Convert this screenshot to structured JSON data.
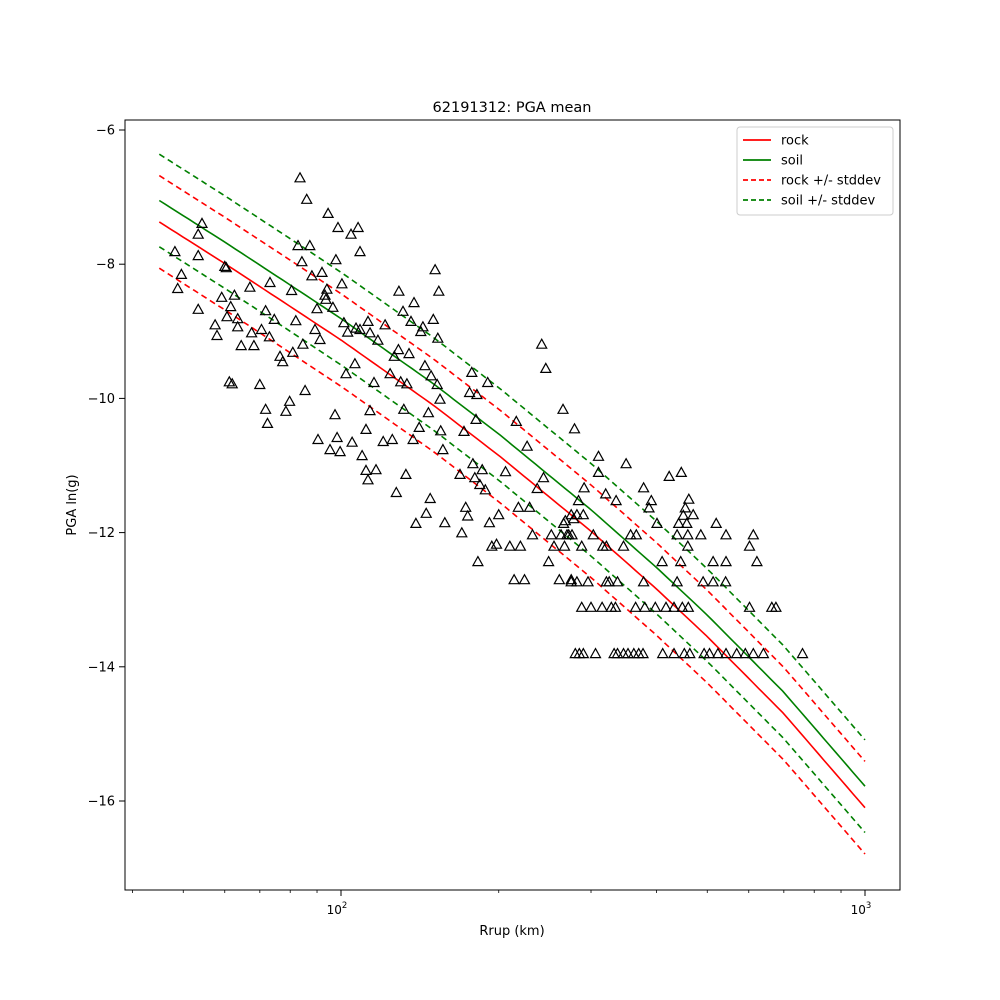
{
  "chart_data": {
    "type": "scatter",
    "title": "62191312: PGA mean",
    "xlabel": "Rrup (km)",
    "ylabel": "PGA ln(g)",
    "xscale": "log",
    "xlim": [
      38.7,
      1167
    ],
    "ylim": [
      -17.33,
      -5.85
    ],
    "grid": false,
    "legend_position": "top-right",
    "x_ticks": [
      {
        "value": 100,
        "base": "10",
        "exp": "2"
      },
      {
        "value": 1000,
        "base": "10",
        "exp": "3"
      }
    ],
    "y_ticks": [
      {
        "value": -6,
        "label": "−6"
      },
      {
        "value": -8,
        "label": "−8"
      },
      {
        "value": -10,
        "label": "−10"
      },
      {
        "value": -12,
        "label": "−12"
      },
      {
        "value": -14,
        "label": "−14"
      },
      {
        "value": -16,
        "label": "−16"
      }
    ],
    "series": [
      {
        "name": "rock",
        "color": "#ff0000",
        "style": "solid",
        "offset": 0
      },
      {
        "name": "soil",
        "color": "#008000",
        "style": "solid",
        "offset": 0.32
      },
      {
        "name": "rock +/- stddev",
        "color": "#ff0000",
        "style": "dashed",
        "offset": 0,
        "stddev": 0.69
      },
      {
        "name": "soil +/- stddev",
        "color": "#008000",
        "style": "dashed",
        "offset": 0.32,
        "stddev": 0.69
      }
    ],
    "rock_curve": {
      "x": [
        45,
        60,
        80,
        100,
        150,
        200,
        300,
        400,
        500,
        700,
        1000
      ],
      "y": [
        -7.37,
        -7.99,
        -8.63,
        -9.13,
        -10.1,
        -10.85,
        -11.98,
        -12.84,
        -13.55,
        -14.7,
        -16.1
      ]
    },
    "observations": [
      [
        48.2,
        -7.82
      ],
      [
        48.8,
        -8.37
      ],
      [
        49.6,
        -8.16
      ],
      [
        53.4,
        -8.68
      ],
      [
        53.4,
        -7.88
      ],
      [
        53.4,
        -7.56
      ],
      [
        54.3,
        -7.4
      ],
      [
        57.5,
        -8.91
      ],
      [
        58,
        -9.07
      ],
      [
        59.2,
        -8.5
      ],
      [
        60,
        -8.04
      ],
      [
        60.4,
        -8.06
      ],
      [
        60.6,
        -8.79
      ],
      [
        61.2,
        -9.76
      ],
      [
        62,
        -9.79
      ],
      [
        61.6,
        -8.64
      ],
      [
        62.6,
        -8.47
      ],
      [
        63.5,
        -8.94
      ],
      [
        64.5,
        -9.22
      ],
      [
        63.5,
        -8.82
      ],
      [
        67,
        -8.35
      ],
      [
        67.5,
        -9.03
      ],
      [
        68.2,
        -9.22
      ],
      [
        70,
        -9.8
      ],
      [
        70.5,
        -8.98
      ],
      [
        71.8,
        -8.7
      ],
      [
        71.8,
        -10.17
      ],
      [
        72.4,
        -10.38
      ],
      [
        73,
        -9.09
      ],
      [
        73.2,
        -8.28
      ],
      [
        74.6,
        -8.83
      ],
      [
        76.5,
        -9.38
      ],
      [
        77.4,
        -9.46
      ],
      [
        78.5,
        -10.2
      ],
      [
        79.8,
        -10.05
      ],
      [
        80.5,
        -8.4
      ],
      [
        80.9,
        -9.32
      ],
      [
        82,
        -8.85
      ],
      [
        82.8,
        -7.73
      ],
      [
        83.5,
        -6.72
      ],
      [
        84.2,
        -7.97
      ],
      [
        84.6,
        -9.2
      ],
      [
        85.4,
        -9.89
      ],
      [
        86,
        -7.04
      ],
      [
        87.2,
        -7.73
      ],
      [
        88,
        -8.18
      ],
      [
        89.2,
        -8.98
      ],
      [
        90,
        -8.67
      ],
      [
        90.4,
        -10.62
      ],
      [
        91.2,
        -9.13
      ],
      [
        92,
        -8.13
      ],
      [
        93.2,
        -8.47
      ],
      [
        93.6,
        -8.53
      ],
      [
        94,
        -8.38
      ],
      [
        94.5,
        -7.25
      ],
      [
        95.3,
        -10.77
      ],
      [
        96.5,
        -8.65
      ],
      [
        97.8,
        -7.94
      ],
      [
        98.7,
        -7.46
      ],
      [
        100.4,
        -8.3
      ],
      [
        101.3,
        -8.88
      ],
      [
        102.2,
        -9.64
      ],
      [
        103,
        -9.02
      ],
      [
        97.4,
        -10.25
      ],
      [
        98.3,
        -10.59
      ],
      [
        99.6,
        -10.8
      ],
      [
        104.5,
        -7.56
      ],
      [
        106.8,
        -8.96
      ],
      [
        107.8,
        -7.46
      ],
      [
        108.7,
        -7.82
      ],
      [
        105,
        -10.66
      ],
      [
        106.3,
        -9.49
      ],
      [
        108.7,
        -8.98
      ],
      [
        109.7,
        -10.86
      ],
      [
        111.6,
        -10.47
      ],
      [
        112.6,
        -8.86
      ],
      [
        113.6,
        -9.03
      ],
      [
        111.6,
        -11.08
      ],
      [
        112.6,
        -11.22
      ],
      [
        113.6,
        -10.19
      ],
      [
        115.6,
        -9.77
      ],
      [
        116.6,
        -11.07
      ],
      [
        117.6,
        -9.14
      ],
      [
        120.4,
        -10.65
      ],
      [
        121.4,
        -8.91
      ],
      [
        124.1,
        -9.64
      ],
      [
        125.3,
        -10.62
      ],
      [
        126.4,
        -9.38
      ],
      [
        127.5,
        -11.41
      ],
      [
        128.7,
        -9.28
      ],
      [
        129,
        -8.41
      ],
      [
        130,
        -9.76
      ],
      [
        131.3,
        -8.71
      ],
      [
        131.8,
        -10.17
      ],
      [
        133.6,
        -9.79
      ],
      [
        133,
        -11.14
      ],
      [
        134.8,
        -9.34
      ],
      [
        136,
        -8.86
      ],
      [
        137.3,
        -10.62
      ],
      [
        137.8,
        -8.58
      ],
      [
        139,
        -11.87
      ],
      [
        141,
        -10.44
      ],
      [
        142,
        -9.01
      ],
      [
        143.3,
        -8.94
      ],
      [
        144.6,
        -9.52
      ],
      [
        145.4,
        -11.72
      ],
      [
        146.8,
        -10.22
      ],
      [
        148,
        -11.5
      ],
      [
        148.6,
        -9.67
      ],
      [
        150,
        -8.83
      ],
      [
        151.2,
        -8.09
      ],
      [
        152.6,
        -9.8
      ],
      [
        153,
        -9.11
      ],
      [
        153.7,
        -8.41
      ],
      [
        155,
        -10.49
      ],
      [
        156.5,
        -10.77
      ],
      [
        157.8,
        -11.86
      ],
      [
        154.5,
        -10.02
      ],
      [
        168.7,
        -11.14
      ],
      [
        170,
        -12.01
      ],
      [
        171.7,
        -10.5
      ],
      [
        173,
        -11.63
      ],
      [
        174.5,
        -11.76
      ],
      [
        176,
        -9.92
      ],
      [
        177.7,
        -9.62
      ],
      [
        178.5,
        -10.98
      ],
      [
        180,
        -11.19
      ],
      [
        181,
        -10.32
      ],
      [
        181.7,
        -9.95
      ],
      [
        182.5,
        -12.44
      ],
      [
        184,
        -11.29
      ],
      [
        186,
        -11.07
      ],
      [
        188.5,
        -11.37
      ],
      [
        190.5,
        -9.77
      ],
      [
        192,
        -11.86
      ],
      [
        194,
        -12.21
      ],
      [
        198,
        -12.18
      ],
      [
        200,
        -11.74
      ],
      [
        206,
        -11.1
      ],
      [
        210,
        -12.21
      ],
      [
        214,
        -12.71
      ],
      [
        216,
        -10.35
      ],
      [
        218,
        -11.63
      ],
      [
        220,
        -12.21
      ],
      [
        224,
        -12.71
      ],
      [
        226.5,
        -10.72
      ],
      [
        229,
        -11.63
      ],
      [
        232,
        -12.04
      ],
      [
        236.8,
        -11.35
      ],
      [
        241.6,
        -9.2
      ],
      [
        243.5,
        -11.19
      ],
      [
        246,
        -9.56
      ],
      [
        249,
        -12.44
      ],
      [
        252,
        -12.04
      ],
      [
        255,
        -12.21
      ],
      [
        261,
        -12.71
      ],
      [
        265.3,
        -10.17
      ],
      [
        268,
        -11.83
      ],
      [
        272,
        -12.04
      ],
      [
        275,
        -12.71
      ],
      [
        278,
        -11.8
      ],
      [
        279,
        -10.46
      ],
      [
        310,
        -10.87
      ],
      [
        350,
        -10.98
      ],
      [
        310,
        -11.11
      ],
      [
        291,
        -11.34
      ],
      [
        320,
        -11.43
      ],
      [
        335,
        -11.53
      ],
      [
        284,
        -11.53
      ],
      [
        378,
        -11.34
      ],
      [
        423,
        -11.17
      ],
      [
        446,
        -11.11
      ],
      [
        391,
        -11.53
      ],
      [
        461,
        -11.51
      ],
      [
        387,
        -11.64
      ],
      [
        454,
        -11.64
      ],
      [
        275,
        -11.74
      ],
      [
        282,
        -11.74
      ],
      [
        290,
        -11.74
      ],
      [
        450,
        -11.75
      ],
      [
        470,
        -11.74
      ],
      [
        266,
        -11.87
      ],
      [
        401,
        -11.87
      ],
      [
        441,
        -11.87
      ],
      [
        457,
        -11.87
      ],
      [
        520,
        -11.87
      ],
      [
        263,
        -12.04
      ],
      [
        270,
        -12.04
      ],
      [
        276,
        -12.04
      ],
      [
        303,
        -12.04
      ],
      [
        357,
        -12.04
      ],
      [
        366,
        -12.04
      ],
      [
        438,
        -12.04
      ],
      [
        459,
        -12.04
      ],
      [
        486,
        -12.04
      ],
      [
        543,
        -12.04
      ],
      [
        612,
        -12.04
      ],
      [
        267,
        -12.21
      ],
      [
        288,
        -12.21
      ],
      [
        316,
        -12.21
      ],
      [
        321,
        -12.21
      ],
      [
        346,
        -12.21
      ],
      [
        459,
        -12.21
      ],
      [
        602,
        -12.21
      ],
      [
        410,
        -12.44
      ],
      [
        445,
        -12.44
      ],
      [
        513,
        -12.44
      ],
      [
        543,
        -12.44
      ],
      [
        622,
        -12.44
      ],
      [
        275,
        -12.74
      ],
      [
        282,
        -12.74
      ],
      [
        296,
        -12.74
      ],
      [
        321,
        -12.74
      ],
      [
        325,
        -12.74
      ],
      [
        337,
        -12.74
      ],
      [
        378,
        -12.74
      ],
      [
        438,
        -12.74
      ],
      [
        491,
        -12.74
      ],
      [
        513,
        -12.74
      ],
      [
        542,
        -12.74
      ],
      [
        288,
        -13.12
      ],
      [
        300,
        -13.12
      ],
      [
        315,
        -13.12
      ],
      [
        328,
        -13.12
      ],
      [
        334,
        -13.12
      ],
      [
        365,
        -13.12
      ],
      [
        380,
        -13.12
      ],
      [
        398,
        -13.12
      ],
      [
        417,
        -13.12
      ],
      [
        432,
        -13.12
      ],
      [
        448,
        -13.12
      ],
      [
        460,
        -13.12
      ],
      [
        602,
        -13.12
      ],
      [
        664,
        -13.12
      ],
      [
        676,
        -13.12
      ],
      [
        280,
        -13.81
      ],
      [
        285,
        -13.81
      ],
      [
        290,
        -13.81
      ],
      [
        306,
        -13.81
      ],
      [
        332,
        -13.81
      ],
      [
        337,
        -13.81
      ],
      [
        346,
        -13.81
      ],
      [
        353,
        -13.81
      ],
      [
        362,
        -13.81
      ],
      [
        370,
        -13.81
      ],
      [
        377,
        -13.81
      ],
      [
        411,
        -13.81
      ],
      [
        432,
        -13.81
      ],
      [
        452,
        -13.81
      ],
      [
        463,
        -13.81
      ],
      [
        493,
        -13.81
      ],
      [
        505,
        -13.81
      ],
      [
        524,
        -13.81
      ],
      [
        543,
        -13.81
      ],
      [
        569,
        -13.81
      ],
      [
        591,
        -13.81
      ],
      [
        612,
        -13.81
      ],
      [
        640,
        -13.81
      ],
      [
        760,
        -13.81
      ]
    ]
  }
}
